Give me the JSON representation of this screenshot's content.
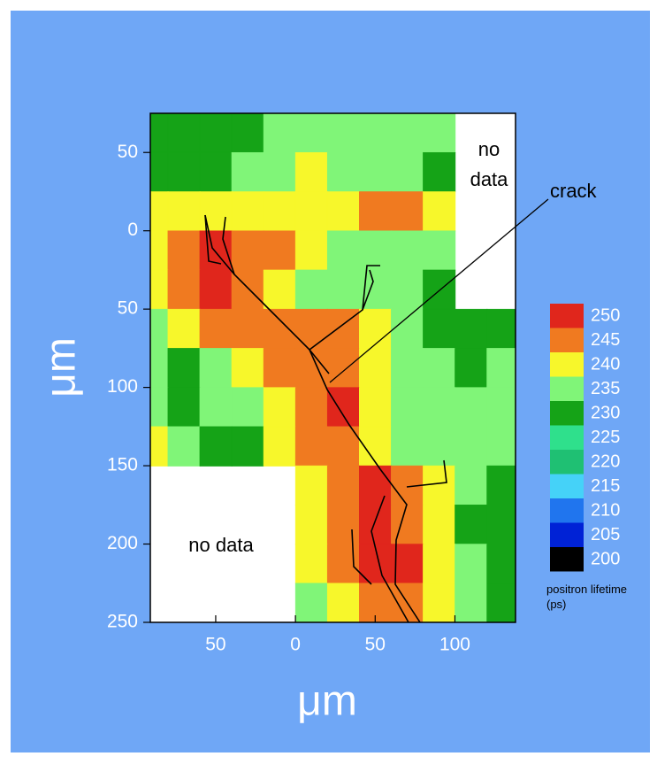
{
  "chart_data": {
    "type": "contour",
    "x_label": "μm",
    "y_label": "μm",
    "xlim": [
      -91,
      138
    ],
    "ylim": [
      -75,
      250
    ],
    "y_inverted": true,
    "xticks": [
      {
        "value": -50,
        "label": "50"
      },
      0,
      50,
      100
    ],
    "yticks": [
      {
        "value": -50,
        "label": "50"
      },
      0,
      50,
      100,
      150,
      200,
      250
    ],
    "x": [
      -90,
      -70,
      -50,
      -30,
      -10,
      10,
      30,
      50,
      70,
      90,
      110,
      130
    ],
    "y": [
      -62.5,
      -37.5,
      -12.5,
      12.5,
      37.5,
      62.5,
      87.5,
      112.5,
      137.5,
      162.5,
      187.5,
      212.5,
      237.5
    ],
    "z": [
      [
        230,
        230,
        230,
        230,
        235,
        235,
        235,
        235,
        235,
        235,
        null,
        null
      ],
      [
        230,
        230,
        230,
        235,
        235,
        240,
        235,
        235,
        235,
        230,
        null,
        null
      ],
      [
        240,
        240,
        240,
        240,
        240,
        240,
        240,
        245,
        245,
        240,
        null,
        null
      ],
      [
        240,
        245,
        250,
        245,
        245,
        240,
        235,
        235,
        235,
        235,
        null,
        null
      ],
      [
        240,
        245,
        250,
        245,
        240,
        235,
        235,
        235,
        235,
        230,
        null,
        null
      ],
      [
        235,
        240,
        245,
        245,
        245,
        245,
        245,
        240,
        235,
        230,
        230,
        230
      ],
      [
        235,
        230,
        235,
        240,
        245,
        245,
        245,
        240,
        235,
        235,
        230,
        235
      ],
      [
        235,
        230,
        235,
        235,
        240,
        245,
        250,
        240,
        235,
        235,
        235,
        235
      ],
      [
        240,
        235,
        230,
        230,
        240,
        245,
        245,
        240,
        235,
        235,
        235,
        235
      ],
      [
        null,
        null,
        null,
        null,
        null,
        240,
        245,
        250,
        245,
        240,
        235,
        230
      ],
      [
        null,
        null,
        null,
        null,
        null,
        240,
        245,
        250,
        245,
        240,
        230,
        230
      ],
      [
        null,
        null,
        null,
        null,
        null,
        240,
        245,
        250,
        250,
        240,
        235,
        230
      ],
      [
        null,
        null,
        null,
        null,
        null,
        235,
        240,
        245,
        245,
        240,
        235,
        230
      ]
    ],
    "levels": [
      250,
      245,
      240,
      235,
      230,
      225,
      220,
      215,
      210,
      205,
      200
    ],
    "level_colors": [
      "#e0261c",
      "#f07a20",
      "#f7f72b",
      "#80f578",
      "#15a317",
      "#2fe08c",
      "#1fc073",
      "#45d2f8",
      "#2075ee",
      "#0022d6",
      "#000000"
    ],
    "colorbar_label": "positron lifetime (ps)",
    "annotations": [
      "no data",
      "no data",
      "crack"
    ]
  }
}
